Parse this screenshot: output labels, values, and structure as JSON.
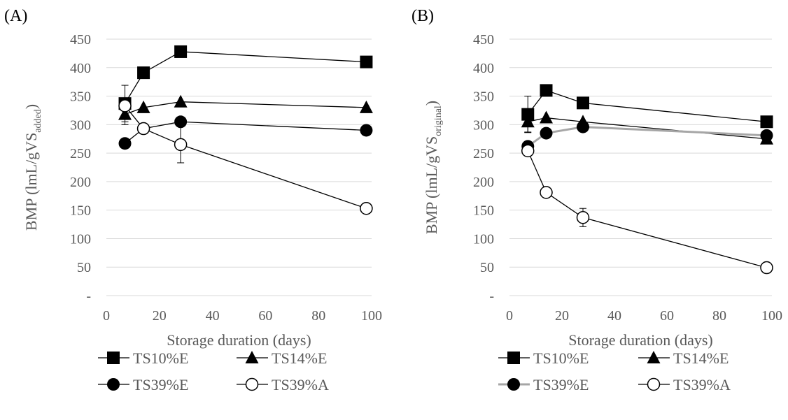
{
  "chart_data": [
    {
      "panel_label": "(A)",
      "type": "line",
      "xlabel": "Storage duration (days)",
      "ylabel": {
        "main": "BMP (lmL/gVS",
        "sub": "added",
        "close": ")"
      },
      "xlim": [
        0,
        100
      ],
      "ylim": [
        0,
        450
      ],
      "x_ticks": [
        "0",
        "20",
        "40",
        "60",
        "80",
        "100"
      ],
      "y_ticks": [
        "-",
        "50",
        "100",
        "150",
        "200",
        "250",
        "300",
        "350",
        "400",
        "450"
      ],
      "grid": "horizontal",
      "legend_position": "bottom",
      "x": [
        7,
        14,
        28,
        98
      ],
      "series": [
        {
          "name": "TS10%E",
          "marker": "square",
          "line_color": "#000000",
          "values": [
            337,
            391,
            428,
            410
          ],
          "errors": [
            32,
            0,
            0,
            0
          ]
        },
        {
          "name": "TS14%E",
          "marker": "triangle",
          "line_color": "#000000",
          "values": [
            318,
            330,
            340,
            330
          ],
          "errors": [
            18,
            0,
            0,
            0
          ]
        },
        {
          "name": "TS39%E",
          "marker": "circle-filled",
          "line_color": "#000000",
          "values": [
            267,
            293,
            305,
            290
          ],
          "errors": [
            8,
            6,
            0,
            0
          ]
        },
        {
          "name": "TS39%A",
          "marker": "circle-open",
          "line_color": "#000000",
          "values": [
            333,
            293,
            265,
            153
          ],
          "errors": [
            0,
            0,
            32,
            0
          ]
        }
      ]
    },
    {
      "panel_label": "(B)",
      "type": "line",
      "xlabel": "Storage duration (days)",
      "ylabel": {
        "main": "BMP (lmL/gVS",
        "sub": "original",
        "close": ")"
      },
      "xlim": [
        0,
        100
      ],
      "ylim": [
        0,
        450
      ],
      "x_ticks": [
        "0",
        "20",
        "40",
        "60",
        "80",
        "100"
      ],
      "y_ticks": [
        "-",
        "50",
        "100",
        "150",
        "200",
        "250",
        "300",
        "350",
        "400",
        "450"
      ],
      "grid": "horizontal",
      "legend_position": "bottom",
      "x": [
        7,
        14,
        28,
        98
      ],
      "series": [
        {
          "name": "TS10%E",
          "marker": "square",
          "line_color": "#000000",
          "values": [
            318,
            360,
            338,
            305
          ],
          "errors": [
            32,
            0,
            0,
            0
          ]
        },
        {
          "name": "TS14%E",
          "marker": "triangle",
          "line_color": "#000000",
          "values": [
            305,
            312,
            305,
            275
          ],
          "errors": [
            18,
            0,
            0,
            0
          ]
        },
        {
          "name": "TS39%E",
          "marker": "circle-filled",
          "line_color": "#a6a6a6",
          "values": [
            262,
            285,
            296,
            281
          ],
          "errors": [
            0,
            0,
            0,
            0
          ]
        },
        {
          "name": "TS39%A",
          "marker": "circle-open",
          "line_color": "#000000",
          "values": [
            254,
            181,
            137,
            49
          ],
          "errors": [
            0,
            0,
            16,
            0
          ]
        }
      ]
    }
  ]
}
